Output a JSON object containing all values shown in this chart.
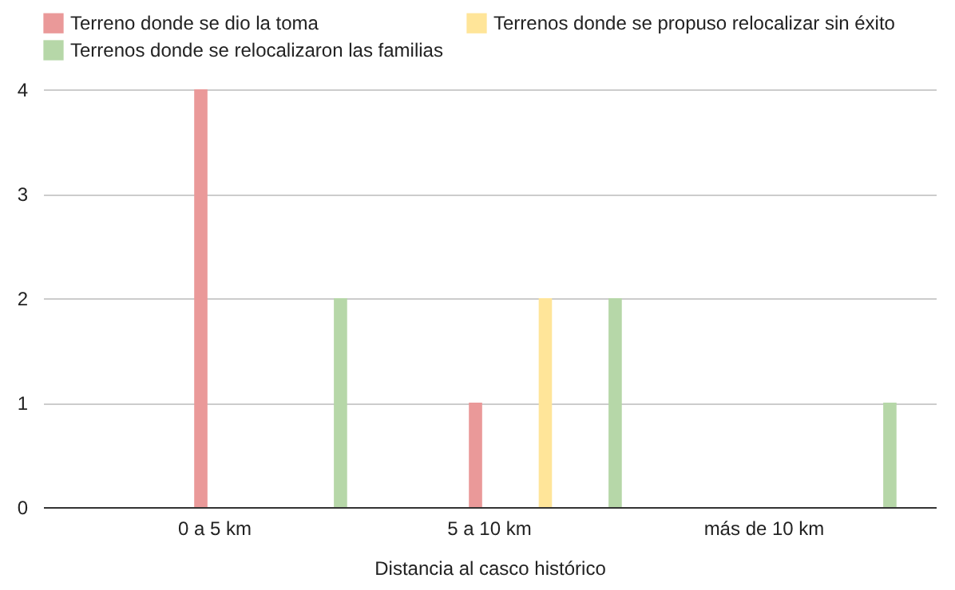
{
  "chart_data": {
    "type": "bar",
    "xlabel": "Distancia al casco histórico",
    "categories": [
      "0 a 5 km",
      "5 a 10 km",
      "más de 10 km"
    ],
    "series": [
      {
        "name": "Terreno donde se dio la toma",
        "color": "#ea9999",
        "values": [
          4,
          1,
          0
        ]
      },
      {
        "name": "Terrenos donde se propuso relocalizar sin éxito",
        "color": "#ffe599",
        "values": [
          0,
          2,
          0
        ]
      },
      {
        "name": "Terrenos donde se relocalizaron las familias",
        "color": "#b6d7a8",
        "values": [
          2,
          2,
          1
        ]
      }
    ],
    "ylim": [
      0,
      4
    ],
    "yticks": [
      0,
      1,
      2,
      3,
      4
    ],
    "grid": "y",
    "legend": "top"
  }
}
